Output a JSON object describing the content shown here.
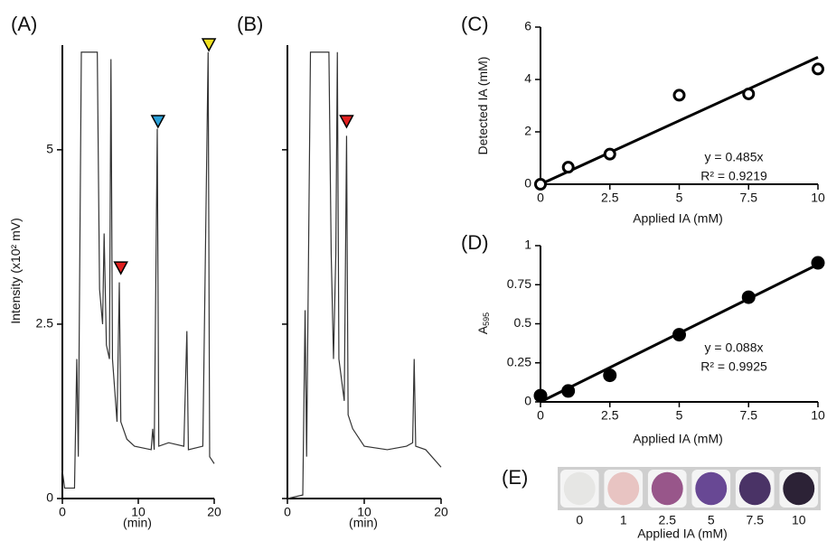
{
  "chart_data": [
    {
      "type": "line",
      "label": "(A)",
      "x_label": "(min)",
      "y_label": "Intensity (x10² mV)",
      "color": "#333333",
      "x": [
        0,
        0.3,
        1.6,
        1.9,
        2.1,
        2.5,
        4.6,
        4.9,
        5.3,
        5.5,
        5.8,
        6.2,
        6.4,
        6.6,
        7.2,
        7.5,
        7.7,
        8.5,
        9.5,
        11.7,
        11.9,
        12.1,
        12.5,
        12.7,
        14,
        16,
        16.4,
        16.6,
        18.5,
        19.2,
        19.4,
        20
      ],
      "y": [
        0.4,
        0.15,
        0.15,
        2.0,
        0.6,
        6.4,
        6.4,
        3.0,
        2.5,
        3.8,
        2.2,
        2.0,
        6.3,
        2.0,
        1.1,
        3.1,
        1.1,
        0.85,
        0.75,
        0.7,
        1.0,
        0.7,
        5.3,
        0.75,
        0.8,
        0.75,
        2.4,
        0.7,
        0.75,
        6.4,
        0.6,
        0.5
      ],
      "markers": [
        {
          "x": 7.7,
          "y": 3.3,
          "color": "#e02020"
        },
        {
          "x": 12.6,
          "y": 5.4,
          "color": "#2aa0d8"
        },
        {
          "x": 19.3,
          "y": 6.5,
          "color": "#f0e020"
        }
      ],
      "xlim": [
        0,
        20
      ],
      "ylim": [
        0,
        6.5
      ],
      "xticks": [
        0,
        10,
        20
      ],
      "yticks": [
        0,
        2.5,
        5
      ],
      "ytick_labels": true
    },
    {
      "type": "line",
      "label": "(B)",
      "x_label": "(min)",
      "color": "#333333",
      "x": [
        0,
        2.0,
        2.3,
        2.5,
        3.0,
        5.4,
        5.7,
        6.0,
        6.3,
        6.5,
        6.7,
        7.4,
        7.7,
        7.9,
        8.5,
        10,
        13,
        15.5,
        16.3,
        16.5,
        16.7,
        18,
        20
      ],
      "y": [
        0,
        0.05,
        2.7,
        0.6,
        6.4,
        6.4,
        3.5,
        2.0,
        3.5,
        6.4,
        2.0,
        1.4,
        5.2,
        1.2,
        1.0,
        0.75,
        0.7,
        0.75,
        0.8,
        2.0,
        0.75,
        0.7,
        0.45
      ],
      "markers": [
        {
          "x": 7.7,
          "y": 5.4,
          "color": "#e02020"
        }
      ],
      "xlim": [
        0,
        20
      ],
      "ylim": [
        0,
        6.5
      ],
      "xticks": [
        0,
        10,
        20
      ],
      "yticks": [
        0,
        2.5,
        5
      ],
      "ytick_labels": false
    },
    {
      "type": "scatter",
      "label": "(C)",
      "x_label": "Applied IA (mM)",
      "y_label": "Detected IA (mM)",
      "marker": "open",
      "x": [
        0,
        1,
        2.5,
        5,
        7.5,
        10
      ],
      "y": [
        0,
        0.65,
        1.15,
        3.4,
        3.45,
        4.4
      ],
      "fit_slope": 0.485,
      "annotations": [
        "y = 0.485x",
        "R² = 0.9219"
      ],
      "xlim": [
        0,
        10
      ],
      "ylim": [
        0,
        6
      ],
      "xticks": [
        0,
        2.5,
        5,
        7.5,
        10
      ],
      "yticks": [
        0,
        2,
        4,
        6
      ]
    },
    {
      "type": "scatter",
      "label": "(D)",
      "x_label": "Applied IA (mM)",
      "y_label": "A",
      "y_label_sub": "595",
      "marker": "filled",
      "x": [
        0,
        1,
        2.5,
        5,
        7.5,
        10
      ],
      "y": [
        0.04,
        0.07,
        0.17,
        0.43,
        0.67,
        0.89
      ],
      "fit_slope": 0.088,
      "annotations": [
        "y = 0.088x",
        "R² = 0.9925"
      ],
      "xlim": [
        0,
        10
      ],
      "ylim": [
        0,
        1
      ],
      "xticks": [
        0,
        2.5,
        5,
        7.5,
        10
      ],
      "yticks": [
        0,
        0.25,
        0.5,
        0.75,
        1
      ]
    },
    {
      "type": "swatch",
      "label": "(E)",
      "x_label": "Applied IA (mM)",
      "categories": [
        "0",
        "1",
        "2.5",
        "5",
        "7.5",
        "10"
      ],
      "colors": [
        "#e6e6e4",
        "#e8c4c2",
        "#98568a",
        "#684894",
        "#4a3366",
        "#2c2236"
      ]
    }
  ]
}
